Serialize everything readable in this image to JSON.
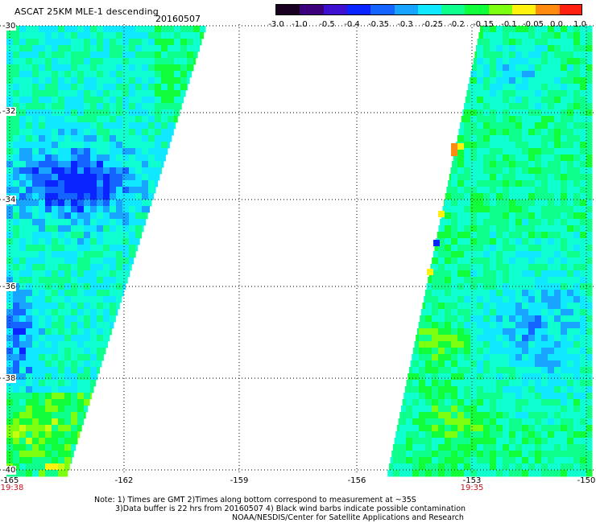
{
  "header": {
    "title": "ASCAT 25KM MLE-1 descending",
    "date": "20160507"
  },
  "colorbar": {
    "labels": [
      "-3.0",
      "-1.0",
      "-0.5",
      "-0.4",
      "-0.35",
      "-0.3",
      "-0.25",
      "-0.2",
      "-0.15",
      "-0.1",
      "-0.05",
      "0.0",
      "1.0"
    ],
    "colors": [
      "#1a0020",
      "#3c007a",
      "#3d10d0",
      "#0a24ff",
      "#1664ff",
      "#17a4ff",
      "#10e8ff",
      "#0fff8c",
      "#10ff3a",
      "#7dff10",
      "#fff20f",
      "#ff8a0f",
      "#ff1f0f"
    ]
  },
  "axes": {
    "lat_labels": [
      "-30",
      "-32",
      "-34",
      "-36",
      "-38",
      "-40"
    ],
    "lon_labels": [
      "-165",
      "-162",
      "-159",
      "-156",
      "-153",
      "-150"
    ]
  },
  "times": {
    "left": "19:38",
    "right": "19:35"
  },
  "notes": {
    "line1": "Note: 1) Times are GMT 2)Times along bottom correspond to measurement at ~35S",
    "line2": "3)Data buffer is 22 hrs from 20160507 4) Black wind barbs indicate possible contamination",
    "line3": "NOAA/NESDIS/Center for Satellite Applications and Research"
  }
}
